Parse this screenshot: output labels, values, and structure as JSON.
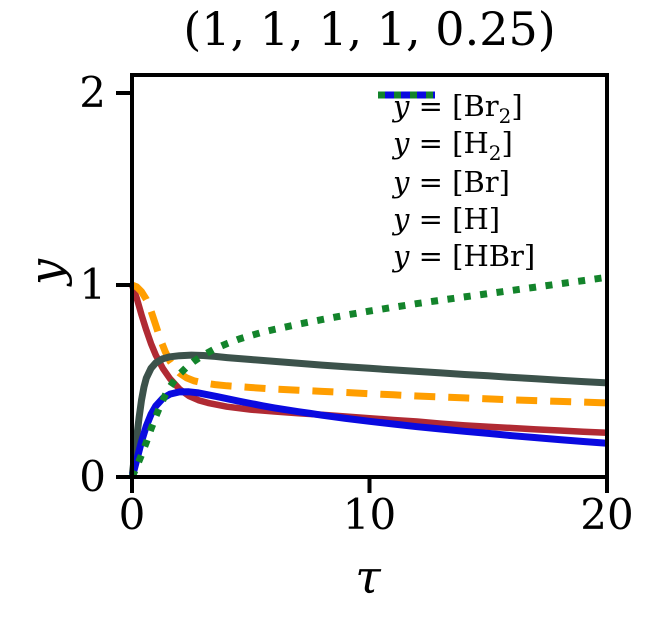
{
  "figure": {
    "background": "#ffffff",
    "spine_color": "#000000",
    "text_color": "#000000"
  },
  "chart_data": {
    "type": "line",
    "title": "(1, 1, 1, 1, 0.25)",
    "xlabel": "τ",
    "ylabel": "y",
    "xlim": [
      0,
      20
    ],
    "ylim": [
      0,
      2.09
    ],
    "x_ticks": [
      0,
      10,
      20
    ],
    "x_tick_labels": [
      "0",
      "10",
      "20"
    ],
    "y_ticks": [
      0,
      1,
      2
    ],
    "y_tick_labels": [
      "0",
      "1",
      "2"
    ],
    "grid": false,
    "legend_position": "upper right",
    "legend_frame": false,
    "series": [
      {
        "id": "br2",
        "label": "y = [Br₂]",
        "label_parts": {
          "lhs": "y",
          "mid": " = [",
          "species": "Br",
          "sub": "2",
          "end": "]"
        },
        "color": "#b02a33",
        "style": "solid",
        "points": [
          [
            0,
            1.0
          ],
          [
            0.2,
            0.93
          ],
          [
            0.4,
            0.845
          ],
          [
            0.6,
            0.765
          ],
          [
            0.8,
            0.695
          ],
          [
            1.0,
            0.635
          ],
          [
            1.3,
            0.565
          ],
          [
            1.6,
            0.512
          ],
          [
            2.0,
            0.458
          ],
          [
            2.4,
            0.422
          ],
          [
            2.8,
            0.4
          ],
          [
            3.2,
            0.386
          ],
          [
            4,
            0.366
          ],
          [
            5,
            0.351
          ],
          [
            6,
            0.341
          ],
          [
            7,
            0.332
          ],
          [
            8,
            0.324
          ],
          [
            9,
            0.315
          ],
          [
            10,
            0.306
          ],
          [
            11,
            0.297
          ],
          [
            12,
            0.289
          ],
          [
            13,
            0.278
          ],
          [
            14,
            0.269
          ],
          [
            15,
            0.262
          ],
          [
            16,
            0.255
          ],
          [
            17,
            0.248
          ],
          [
            18,
            0.242
          ],
          [
            19,
            0.236
          ],
          [
            20,
            0.23
          ]
        ]
      },
      {
        "id": "h2",
        "label": "y = [H₂]",
        "label_parts": {
          "lhs": "y",
          "mid": " = [",
          "species": "H",
          "sub": "2",
          "end": "]"
        },
        "color": "#ff9e00",
        "style": "dashed",
        "points": [
          [
            0,
            1.0
          ],
          [
            0.2,
            0.99
          ],
          [
            0.4,
            0.965
          ],
          [
            0.6,
            0.925
          ],
          [
            0.8,
            0.865
          ],
          [
            1.0,
            0.79
          ],
          [
            1.2,
            0.715
          ],
          [
            1.4,
            0.652
          ],
          [
            1.6,
            0.603
          ],
          [
            1.8,
            0.567
          ],
          [
            2.0,
            0.541
          ],
          [
            2.3,
            0.516
          ],
          [
            2.6,
            0.501
          ],
          [
            3.0,
            0.49
          ],
          [
            3.5,
            0.481
          ],
          [
            4,
            0.475
          ],
          [
            5,
            0.466
          ],
          [
            6,
            0.458
          ],
          [
            7,
            0.452
          ],
          [
            8,
            0.446
          ],
          [
            9,
            0.44
          ],
          [
            10,
            0.434
          ],
          [
            11,
            0.428
          ],
          [
            12,
            0.422
          ],
          [
            13,
            0.417
          ],
          [
            14,
            0.412
          ],
          [
            15,
            0.407
          ],
          [
            16,
            0.402
          ],
          [
            17,
            0.398
          ],
          [
            18,
            0.394
          ],
          [
            19,
            0.39
          ],
          [
            20,
            0.386
          ]
        ]
      },
      {
        "id": "br",
        "label": "y = [Br]",
        "label_parts": {
          "lhs": "y",
          "mid": " = [",
          "species": "Br",
          "sub": "",
          "end": "]"
        },
        "color": "#3c524b",
        "style": "solid",
        "points": [
          [
            0,
            0
          ],
          [
            0.1,
            0.105
          ],
          [
            0.2,
            0.21
          ],
          [
            0.3,
            0.31
          ],
          [
            0.4,
            0.4
          ],
          [
            0.5,
            0.467
          ],
          [
            0.6,
            0.515
          ],
          [
            0.8,
            0.566
          ],
          [
            1.0,
            0.595
          ],
          [
            1.3,
            0.616
          ],
          [
            1.6,
            0.626
          ],
          [
            2.0,
            0.632
          ],
          [
            2.5,
            0.635
          ],
          [
            3.0,
            0.633
          ],
          [
            3.5,
            0.628
          ],
          [
            4,
            0.622
          ],
          [
            5,
            0.612
          ],
          [
            6,
            0.602
          ],
          [
            7,
            0.592
          ],
          [
            8,
            0.583
          ],
          [
            9,
            0.574
          ],
          [
            10,
            0.566
          ],
          [
            11,
            0.558
          ],
          [
            12,
            0.55
          ],
          [
            13,
            0.542
          ],
          [
            14,
            0.534
          ],
          [
            15,
            0.527
          ],
          [
            16,
            0.519
          ],
          [
            17,
            0.512
          ],
          [
            18,
            0.504
          ],
          [
            19,
            0.497
          ],
          [
            20,
            0.49
          ]
        ]
      },
      {
        "id": "h",
        "label": "y = [H]",
        "label_parts": {
          "lhs": "y",
          "mid": " = [",
          "species": "H",
          "sub": "",
          "end": "]"
        },
        "color": "#0a0ae0",
        "style": "solid",
        "points": [
          [
            0,
            0
          ],
          [
            0.1,
            0.042
          ],
          [
            0.25,
            0.112
          ],
          [
            0.4,
            0.185
          ],
          [
            0.6,
            0.265
          ],
          [
            0.8,
            0.326
          ],
          [
            1.0,
            0.37
          ],
          [
            1.3,
            0.41
          ],
          [
            1.6,
            0.432
          ],
          [
            2.0,
            0.443
          ],
          [
            2.4,
            0.444
          ],
          [
            2.8,
            0.438
          ],
          [
            3.2,
            0.428
          ],
          [
            3.6,
            0.418
          ],
          [
            4,
            0.408
          ],
          [
            4.5,
            0.395
          ],
          [
            5,
            0.383
          ],
          [
            5.5,
            0.371
          ],
          [
            6,
            0.36
          ],
          [
            6.5,
            0.35
          ],
          [
            7,
            0.34
          ],
          [
            7.5,
            0.331
          ],
          [
            8,
            0.322
          ],
          [
            9,
            0.305
          ],
          [
            10,
            0.29
          ],
          [
            11,
            0.276
          ],
          [
            12,
            0.262
          ],
          [
            13,
            0.25
          ],
          [
            14,
            0.238
          ],
          [
            15,
            0.227
          ],
          [
            16,
            0.215
          ],
          [
            17,
            0.205
          ],
          [
            18,
            0.195
          ],
          [
            19,
            0.185
          ],
          [
            20,
            0.176
          ]
        ]
      },
      {
        "id": "hbr",
        "label": "y = [HBr]",
        "label_parts": {
          "lhs": "y",
          "mid": " = [",
          "species": "HBr",
          "sub": "",
          "end": "]"
        },
        "color": "#13842b",
        "style": "dotted",
        "points": [
          [
            0,
            0
          ],
          [
            0.2,
            0.055
          ],
          [
            0.4,
            0.115
          ],
          [
            0.6,
            0.18
          ],
          [
            0.8,
            0.25
          ],
          [
            1.0,
            0.315
          ],
          [
            1.2,
            0.375
          ],
          [
            1.4,
            0.427
          ],
          [
            1.6,
            0.47
          ],
          [
            1.8,
            0.506
          ],
          [
            2.0,
            0.536
          ],
          [
            2.3,
            0.572
          ],
          [
            2.6,
            0.602
          ],
          [
            3.0,
            0.635
          ],
          [
            3.5,
            0.668
          ],
          [
            4,
            0.695
          ],
          [
            4.5,
            0.718
          ],
          [
            5,
            0.737
          ],
          [
            5.5,
            0.754
          ],
          [
            6,
            0.769
          ],
          [
            7,
            0.796
          ],
          [
            8,
            0.82
          ],
          [
            9,
            0.843
          ],
          [
            10,
            0.864
          ],
          [
            11,
            0.884
          ],
          [
            12,
            0.903
          ],
          [
            13,
            0.921
          ],
          [
            14,
            0.938
          ],
          [
            15,
            0.955
          ],
          [
            16,
            0.972
          ],
          [
            17,
            0.989
          ],
          [
            18,
            1.006
          ],
          [
            19,
            1.023
          ],
          [
            20,
            1.04
          ]
        ]
      }
    ]
  }
}
